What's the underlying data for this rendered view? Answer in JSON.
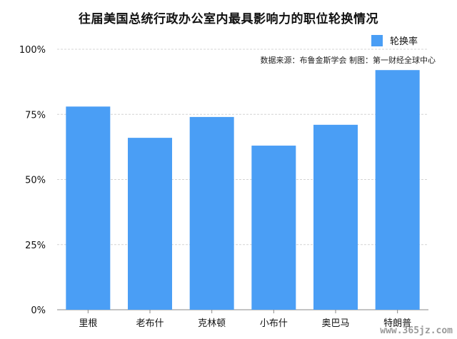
{
  "chart_data": {
    "type": "bar",
    "title": "往届美国总统行政办公室内最具影响力的职位轮换情况",
    "source": "数据来源：布鲁金斯学会 制图：第一财经全球中心",
    "categories": [
      "里根",
      "老布什",
      "克林顿",
      "小布什",
      "奥巴马",
      "特朗普"
    ],
    "series": [
      {
        "name": "轮换率",
        "values": [
          78,
          66,
          74,
          63,
          71,
          92
        ],
        "color": "#4a9ef5"
      }
    ],
    "y_ticks": [
      "0%",
      "25%",
      "50%",
      "75%",
      "100%"
    ],
    "ylim": [
      0,
      100
    ],
    "grid": true,
    "legend": "top-right"
  },
  "watermark": "www.365jz.com"
}
